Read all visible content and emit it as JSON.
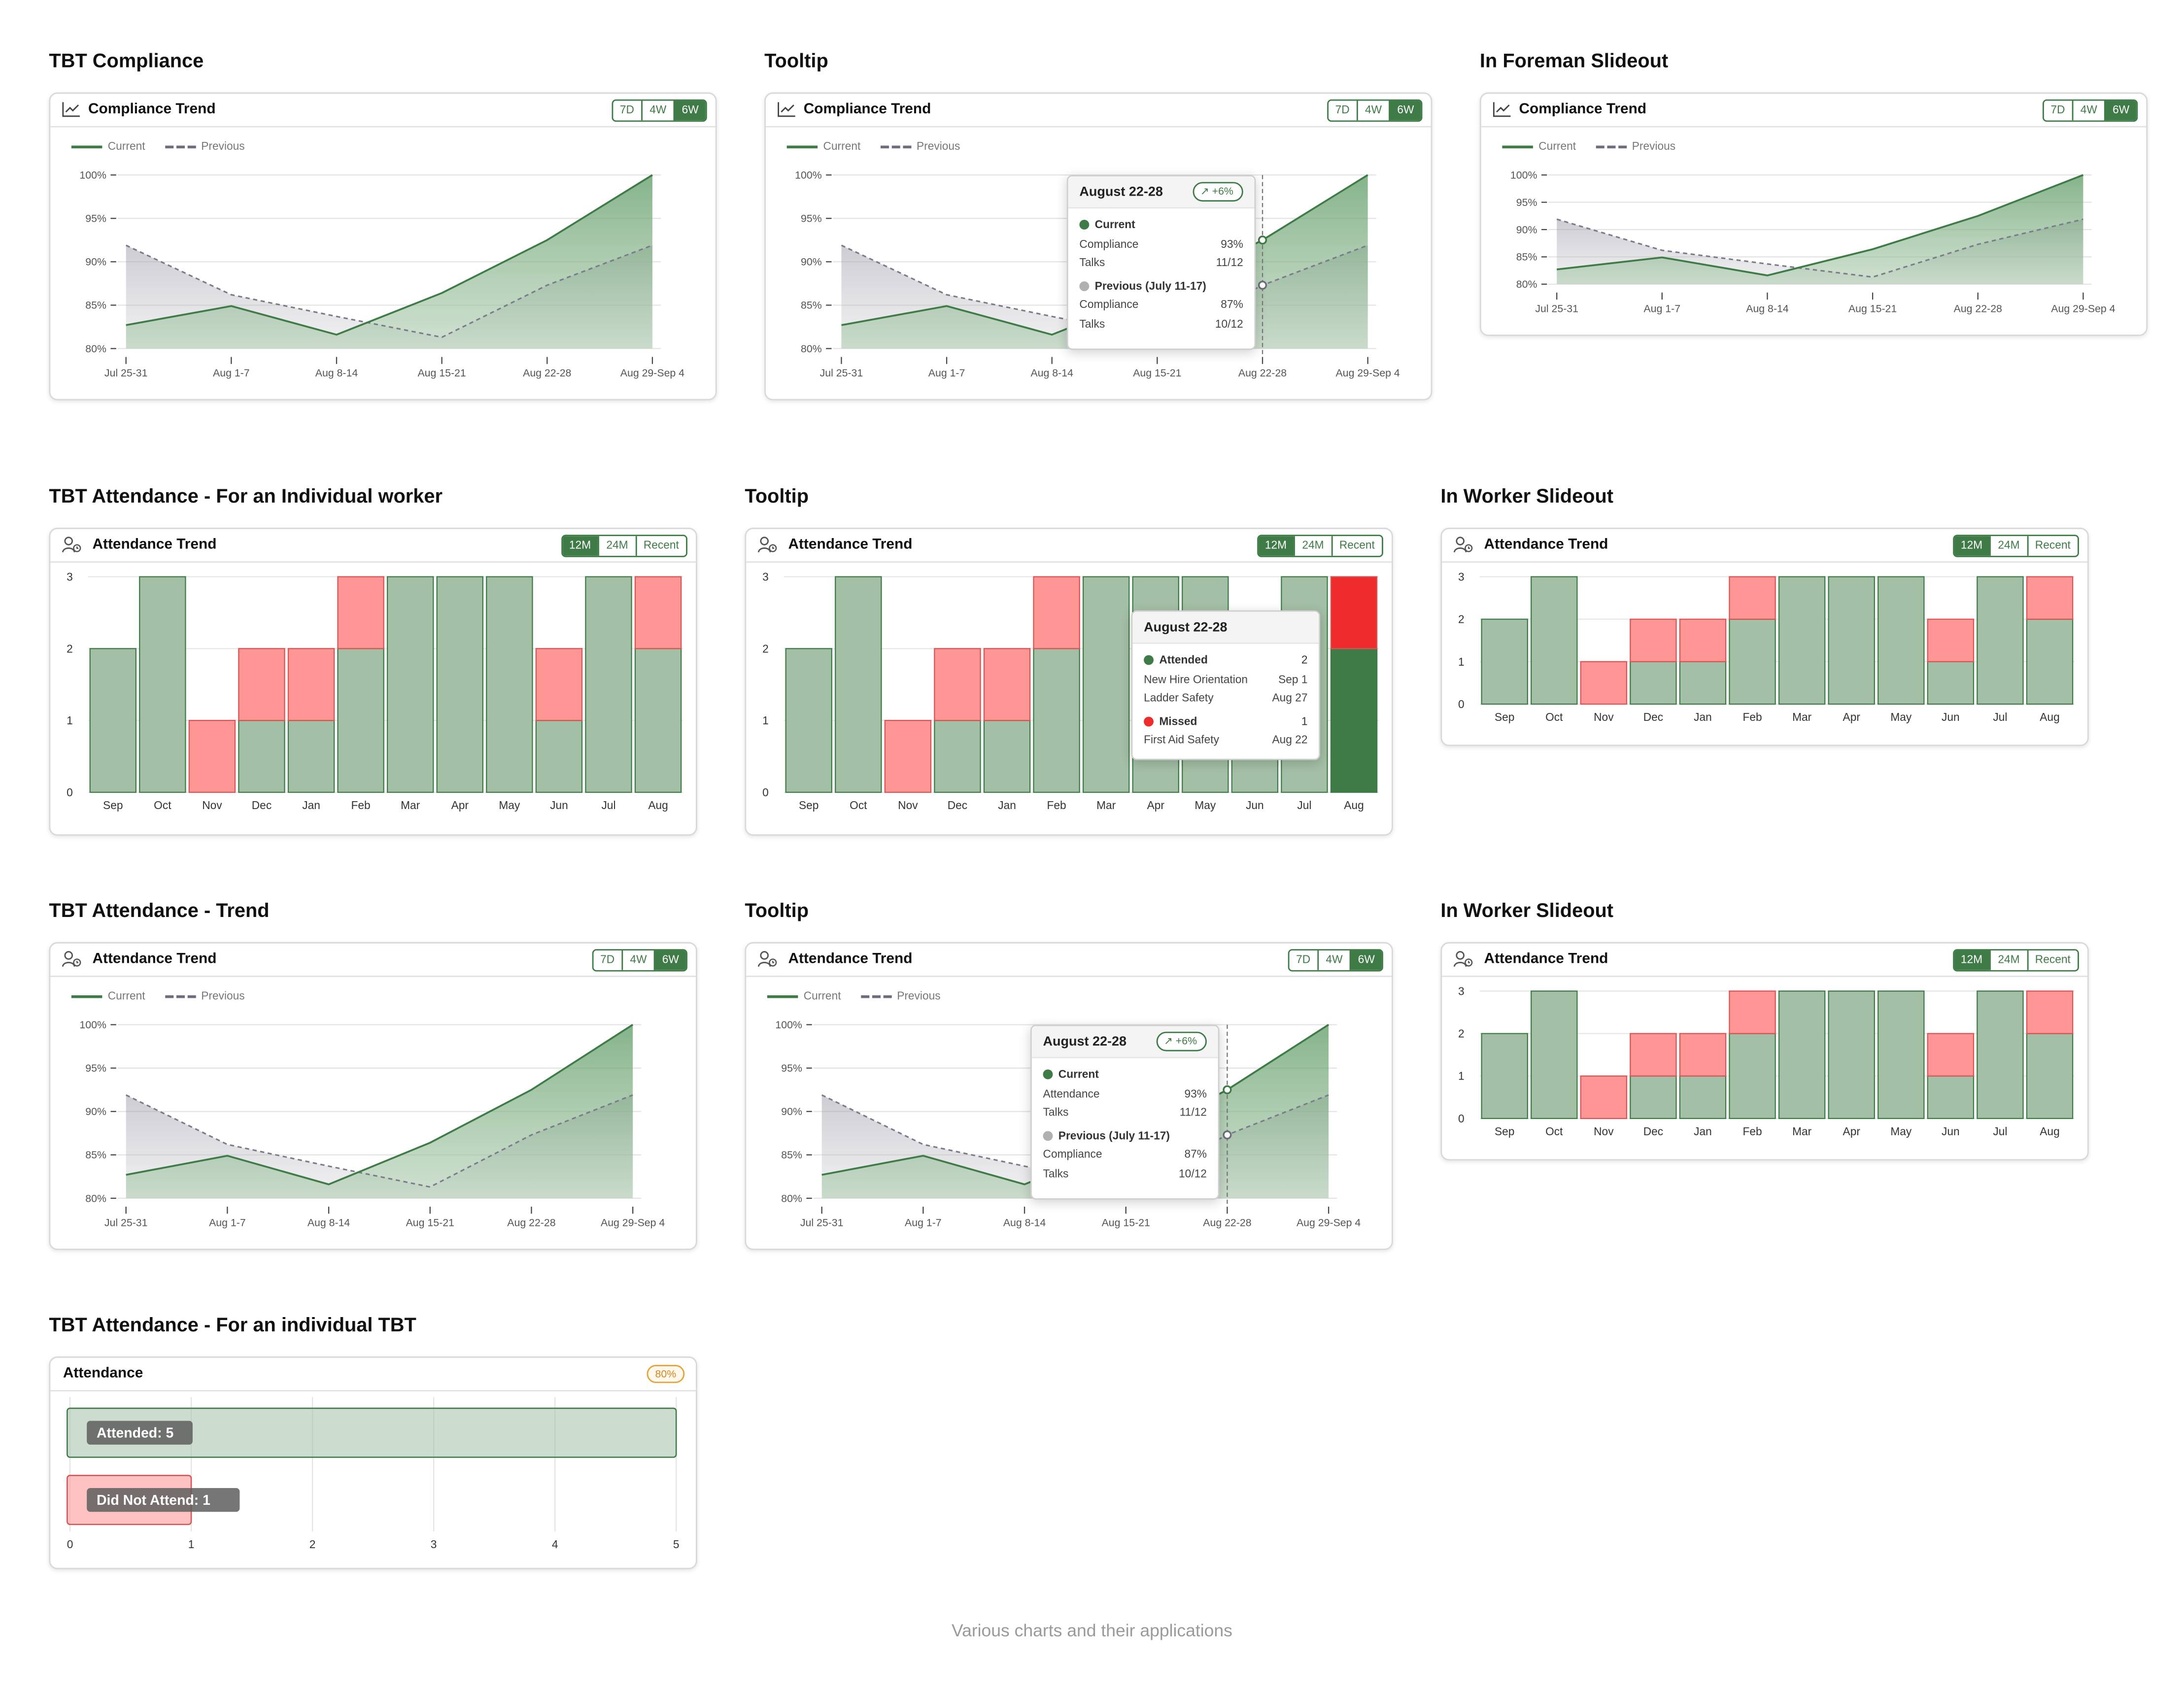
{
  "sections": {
    "s1": "TBT Compliance",
    "s2": "Tooltip",
    "s3": "In Foreman Slideout",
    "s4": "TBT Attendance - For an Individual worker",
    "s5": "Tooltip",
    "s6": "In Worker Slideout",
    "s7": "TBT Attendance - Trend",
    "s8": "Tooltip",
    "s9": "In Worker Slideout",
    "s10": "TBT Attendance - For an individual TBT"
  },
  "cards": {
    "compliance_title": "Compliance Trend",
    "attendance_title": "Attendance Trend",
    "attendance_single_title": "Attendance"
  },
  "toggles": {
    "trend": [
      "7D",
      "4W",
      "6W"
    ],
    "trend_active": "6W",
    "monthly": [
      "12M",
      "24M",
      "Recent"
    ],
    "monthly_active": "12M"
  },
  "legend": {
    "current": "Current",
    "previous": "Previous"
  },
  "tooltips": {
    "compliance": {
      "title": "August 22-28",
      "badge": "+6%",
      "current_label": "Current",
      "metric1_label": "Compliance",
      "metric1_value": "93%",
      "talks_label": "Talks",
      "talks_value": "11/12",
      "previous_label": "Previous (July 11-17)",
      "prev_metric_label": "Compliance",
      "prev_metric_value": "87%",
      "prev_talks_label": "Talks",
      "prev_talks_value": "10/12"
    },
    "attendance_trend": {
      "title": "August 22-28",
      "badge": "+6%",
      "current_label": "Current",
      "metric1_label": "Attendance",
      "metric1_value": "93%",
      "talks_label": "Talks",
      "talks_value": "11/12",
      "previous_label": "Previous (July 11-17)",
      "prev_metric_label": "Compliance",
      "prev_metric_value": "87%",
      "prev_talks_label": "Talks",
      "prev_talks_value": "10/12"
    },
    "attendance_monthly": {
      "title": "August 22-28",
      "attended_label": "Attended",
      "attended_value": "2",
      "attended_items": [
        {
          "name": "New Hire Orientation",
          "date": "Sep 1"
        },
        {
          "name": "Ladder Safety",
          "date": "Aug 27"
        }
      ],
      "missed_label": "Missed",
      "missed_value": "1",
      "missed_items": [
        {
          "name": "First Aid Safety",
          "date": "Aug 22"
        }
      ]
    }
  },
  "individual_tbt": {
    "badge": "80%"
  },
  "footer": "Various charts and their applications",
  "chart_data": [
    {
      "type": "area",
      "title": "Compliance Trend",
      "x": [
        "Jul 25-31",
        "Aug 1-7",
        "Aug 8-14",
        "Aug 15-21",
        "Aug 22-28",
        "Aug 29-Sep 4"
      ],
      "y_ticks": [
        "80%",
        "85%",
        "90%",
        "95%",
        "100%"
      ],
      "ylim": [
        80,
        100
      ],
      "series": [
        {
          "name": "Current",
          "values": [
            82.7,
            84.9,
            81.6,
            86.4,
            92.5,
            100
          ]
        },
        {
          "name": "Previous",
          "values": [
            91.9,
            86.2,
            83.7,
            81.3,
            87.3,
            91.9
          ]
        }
      ]
    },
    {
      "type": "bar",
      "title": "Attendance Trend",
      "categories": [
        "Sep",
        "Oct",
        "Nov",
        "Dec",
        "Jan",
        "Feb",
        "Mar",
        "Apr",
        "May",
        "Jun",
        "Jul",
        "Aug"
      ],
      "y_ticks": [
        "0",
        "1",
        "2",
        "3"
      ],
      "ylim": [
        0,
        3
      ],
      "series": [
        {
          "name": "Attended",
          "values": [
            2,
            3,
            0,
            1,
            1,
            2,
            3,
            3,
            3,
            1,
            3,
            2
          ]
        },
        {
          "name": "Missed",
          "values": [
            0,
            0,
            1,
            1,
            1,
            1,
            0,
            0,
            0,
            1,
            0,
            1
          ]
        }
      ],
      "highlighted_category": "Aug"
    },
    {
      "type": "area",
      "title": "Attendance Trend",
      "x": [
        "Jul 25-31",
        "Aug 1-7",
        "Aug 8-14",
        "Aug 15-21",
        "Aug 22-28",
        "Aug 29-Sep 4"
      ],
      "y_ticks": [
        "80%",
        "85%",
        "90%",
        "95%",
        "100%"
      ],
      "ylim": [
        80,
        100
      ],
      "series": [
        {
          "name": "Current",
          "values": [
            82.7,
            84.9,
            81.6,
            86.4,
            92.5,
            100
          ]
        },
        {
          "name": "Previous",
          "values": [
            91.9,
            86.2,
            83.7,
            81.3,
            87.3,
            91.9
          ]
        }
      ]
    },
    {
      "type": "bar",
      "orientation": "horizontal",
      "title": "Attendance",
      "categories": [
        "Attended",
        "Did Not Attend"
      ],
      "labels": [
        "Attended: 5",
        "Did Not Attend: 1"
      ],
      "values": [
        5,
        1
      ],
      "x_ticks": [
        "0",
        "1",
        "2",
        "3",
        "4",
        "5"
      ],
      "xlim": [
        0,
        5
      ]
    }
  ]
}
